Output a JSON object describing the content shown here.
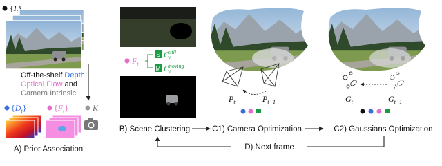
{
  "prior": {
    "frames": [
      {
        "t": "{"
      },
      {
        "t": "I",
        "s": "i"
      },
      {
        "t": "t",
        "s": "sub"
      },
      {
        "t": "}"
      }
    ],
    "tools_lines": [
      [
        {
          "t": "Off-the-shelf "
        },
        {
          "t": "Depth,",
          "c": "#2f6fe0"
        }
      ],
      [
        {
          "t": "Optical Flow",
          "c": "#e46fc8"
        },
        {
          "t": " and"
        }
      ],
      [
        {
          "t": "Camera Intrinsic",
          "c": "#7a7a7a"
        }
      ]
    ],
    "depth": [
      {
        "t": "{"
      },
      {
        "t": "D",
        "s": "i"
      },
      {
        "t": "t",
        "s": "sub"
      },
      {
        "t": "}"
      }
    ],
    "flow": [
      {
        "t": "{"
      },
      {
        "t": "F",
        "s": "i"
      },
      {
        "t": "t",
        "s": "sub"
      },
      {
        "t": "}"
      }
    ],
    "intrinsic": [
      {
        "t": "K",
        "s": "i"
      }
    ],
    "caption": "A) Prior Association"
  },
  "clustering": {
    "flow": [
      {
        "t": "F",
        "s": "i"
      },
      {
        "t": "t",
        "s": "sub"
      }
    ],
    "still_tag": "S",
    "still": [
      {
        "t": "C",
        "s": "i"
      },
      {
        "t": "t",
        "s": "sub"
      },
      {
        "t": "still",
        "s": "sup"
      }
    ],
    "moving_tag": "M",
    "moving": [
      {
        "t": "C",
        "s": "i"
      },
      {
        "t": "t",
        "s": "sub"
      },
      {
        "t": "moving",
        "s": "sup"
      }
    ],
    "caption": "B) Scene Clustering"
  },
  "camera": {
    "pose_t": [
      {
        "t": "P",
        "s": "i"
      },
      {
        "t": "t",
        "s": "sub"
      }
    ],
    "pose_prev": [
      {
        "t": "P",
        "s": "i"
      },
      {
        "t": "t−1",
        "s": "sub"
      }
    ],
    "caption": "C1) Camera Optimization"
  },
  "gaussians": {
    "g_t": [
      {
        "t": "G",
        "s": "i"
      },
      {
        "t": "t",
        "s": "sub"
      }
    ],
    "g_prev": [
      {
        "t": "G",
        "s": "i"
      },
      {
        "t": "t−1",
        "s": "sub"
      }
    ],
    "caption": "C2) Gaussians Optimization"
  },
  "loop": {
    "caption": "D) Next frame"
  }
}
